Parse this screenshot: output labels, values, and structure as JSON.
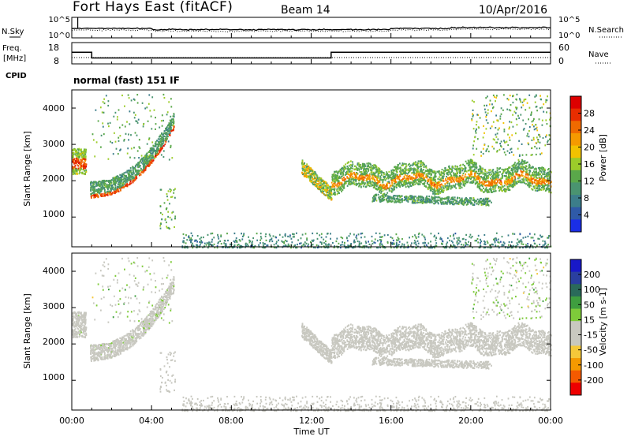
{
  "header": {
    "station": "Fort Hays East (fitACF)",
    "beam": "Beam 14",
    "date": "10/Apr/2016"
  },
  "noise_panel": {
    "left_label": "N.Sky",
    "right_label": "N.Search",
    "y_ticks": [
      "10^5",
      "10^0"
    ]
  },
  "freq_panel": {
    "left_label_line1": "Freq.",
    "left_label_line2": "[MHz]",
    "left_ticks": [
      "18",
      "8"
    ],
    "right_label": "Nave",
    "right_ticks": [
      "60",
      "0"
    ],
    "cpid_label": "CPID",
    "cpid_value": "normal (fast) 151 IF"
  },
  "x_axis": {
    "label": "Time UT",
    "ticks": [
      "00:00",
      "04:00",
      "08:00",
      "12:00",
      "16:00",
      "20:00",
      "00:00"
    ]
  },
  "colors": {
    "power_scale": [
      "#1a2ee6",
      "#2f5aa8",
      "#3c7e8a",
      "#4a9470",
      "#5aa84a",
      "#9ccc2a",
      "#f2c200",
      "#f59a00",
      "#ef6a00",
      "#e82d00",
      "#dd0000"
    ],
    "velocity_scale": [
      "#ee0000",
      "#f45a00",
      "#f59a00",
      "#f5c83a",
      "#c8c8c0",
      "#c8c8c0",
      "#7ecb3a",
      "#3f9e3f",
      "#2a6a5a",
      "#2a3fa0",
      "#1818c8"
    ]
  },
  "chart_data": [
    {
      "type": "line",
      "panel": "noise",
      "series": [
        {
          "name": "N.Sky",
          "style": "solid"
        },
        {
          "name": "N.Search",
          "style": "dotted"
        }
      ],
      "y_scale": "log",
      "ylim": [
        1,
        100000
      ],
      "xlim_hours": [
        0,
        24
      ]
    },
    {
      "type": "line",
      "panel": "frequency",
      "series": [
        {
          "name": "Freq.",
          "style": "solid",
          "x_hours": [
            0,
            1.0,
            1.0,
            13.0,
            13.0,
            24
          ],
          "y_mhz": [
            13.5,
            13.5,
            10.6,
            10.6,
            13.5,
            13.5
          ]
        },
        {
          "name": "Nave",
          "style": "dotted",
          "x_hours": [
            0,
            24
          ],
          "y": [
            10,
            10
          ]
        }
      ],
      "ylim_freq": [
        8,
        18
      ],
      "ylim_nave": [
        0,
        60
      ]
    },
    {
      "type": "heatmap",
      "panel": "power",
      "xlabel": "Time UT",
      "ylabel": "Slant Range [km]",
      "colorbar_label": "Power [dB]",
      "colorbar_ticks": [
        "28",
        "24",
        "20",
        "16",
        "12",
        "8",
        "4"
      ],
      "y_ticks": [
        "4000",
        "3000",
        "2000",
        "1000"
      ],
      "xlim_hours": [
        0,
        24
      ],
      "ylim_km": [
        180,
        4500
      ],
      "zlim": [
        0,
        30
      ]
    },
    {
      "type": "heatmap",
      "panel": "velocity",
      "xlabel": "Time UT",
      "ylabel": "Slant Range [km]",
      "colorbar_label": "Velocity [m s-1]",
      "colorbar_ticks": [
        "200",
        "100",
        "50",
        "15",
        "-15",
        "-50",
        "-100",
        "-200"
      ],
      "y_ticks": [
        "4000",
        "3000",
        "2000",
        "1000"
      ],
      "xlim_hours": [
        0,
        24
      ],
      "ylim_km": [
        180,
        4500
      ],
      "zlim": [
        -250,
        250
      ]
    }
  ]
}
